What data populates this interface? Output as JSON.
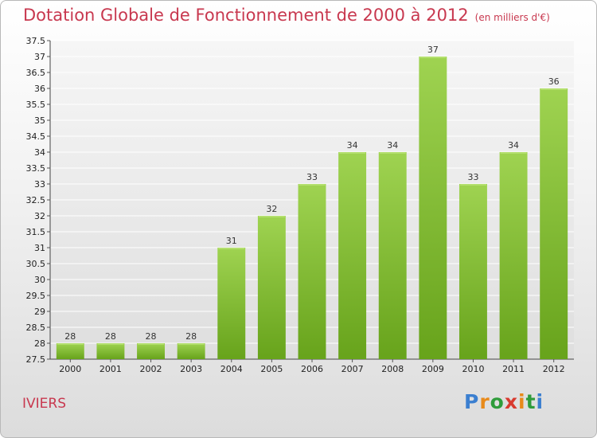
{
  "chart_data": {
    "type": "bar",
    "title": "Dotation Globale de Fonctionnement de 2000 à 2012",
    "unit": "(en milliers d'€)",
    "categories": [
      "2000",
      "2001",
      "2002",
      "2003",
      "2004",
      "2005",
      "2006",
      "2007",
      "2008",
      "2009",
      "2010",
      "2011",
      "2012"
    ],
    "values": [
      28,
      28,
      28,
      28,
      31,
      32,
      33,
      34,
      34,
      37,
      33,
      34,
      36
    ],
    "ylim": [
      27.5,
      37.5
    ],
    "yticks": [
      "27.5",
      "28",
      "28.5",
      "29",
      "29.5",
      "30",
      "30.5",
      "31",
      "31.5",
      "32",
      "32.5",
      "33",
      "33.5",
      "34",
      "34.5",
      "35",
      "35.5",
      "36",
      "36.5",
      "37",
      "37.5"
    ],
    "grid": true,
    "bar_color": "#7fc235"
  },
  "footer": {
    "commune": "IVIERS",
    "logo": "Proxiti"
  }
}
